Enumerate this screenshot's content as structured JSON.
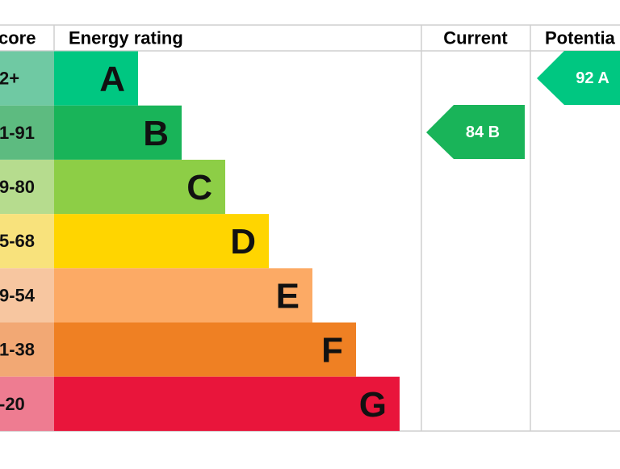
{
  "header": {
    "score": "core",
    "rating": "Energy rating",
    "current": "Current",
    "potential": "Potentia"
  },
  "bands": [
    {
      "score": "2+",
      "letter": "A",
      "color": "#00c781",
      "light": "#6fc9a3"
    },
    {
      "score": "1-91",
      "letter": "B",
      "color": "#19b459",
      "light": "#5dbb80"
    },
    {
      "score": "9-80",
      "letter": "C",
      "color": "#8dce46",
      "light": "#b6dc8e"
    },
    {
      "score": "5-68",
      "letter": "D",
      "color": "#ffd500",
      "light": "#f8e27c"
    },
    {
      "score": "9-54",
      "letter": "E",
      "color": "#fcaa65",
      "light": "#f7c6a0"
    },
    {
      "score": "1-38",
      "letter": "F",
      "color": "#ef8023",
      "light": "#f2a874"
    },
    {
      "score": "-20",
      "letter": "G",
      "color": "#e9153b",
      "light": "#ee7c91"
    }
  ],
  "current": {
    "score": "84",
    "band": "B"
  },
  "potential": {
    "score": "92",
    "band": "A"
  }
}
